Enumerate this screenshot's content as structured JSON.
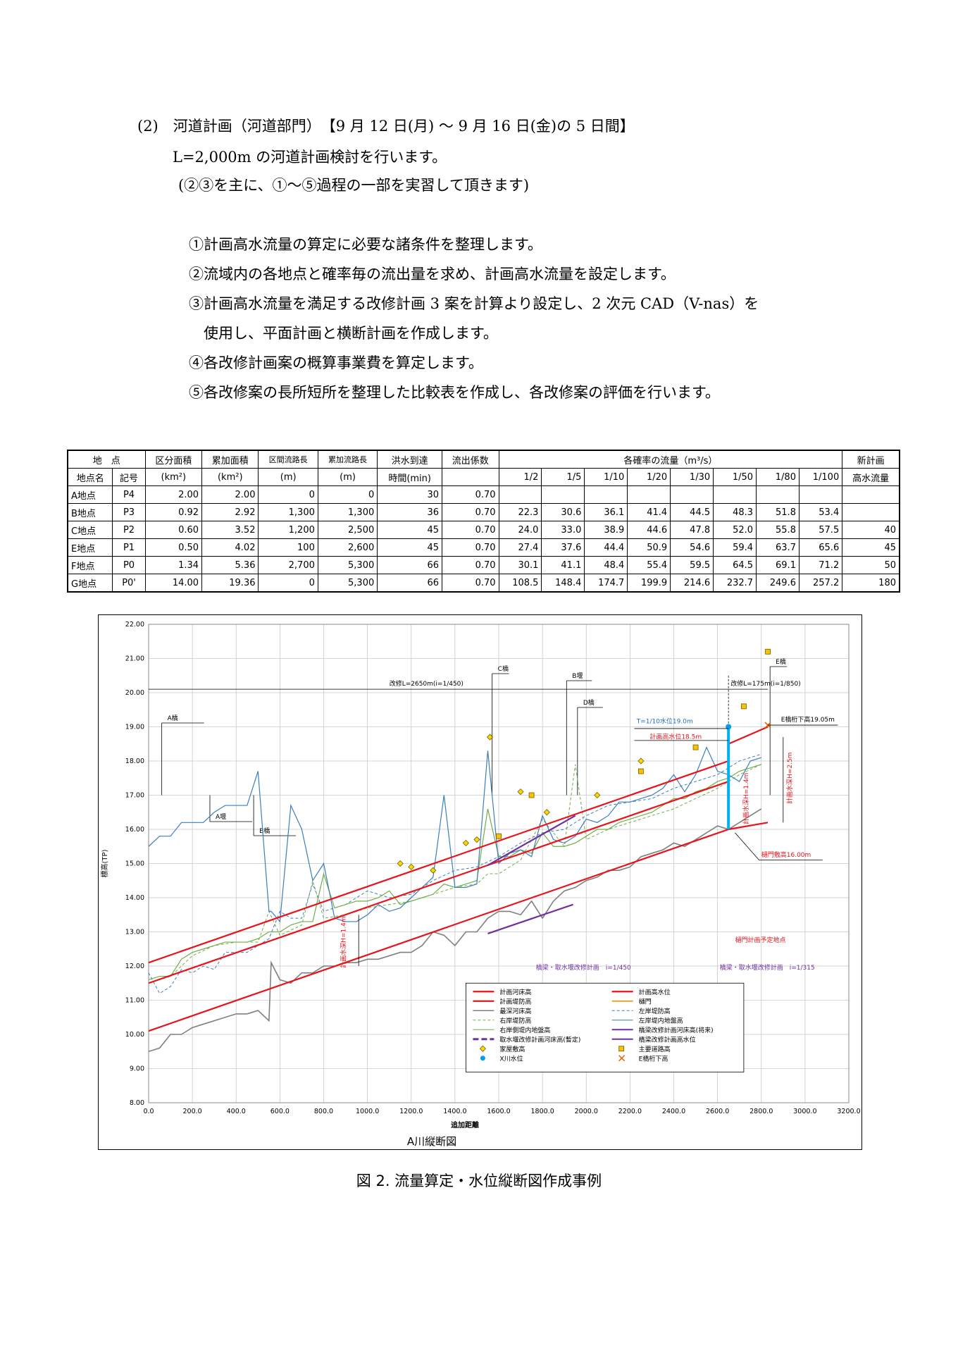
{
  "heading": "(2)　河道計画（河道部門）　【9 月 12 日(月) ～ 9 月 16 日(金)の 5 日間】",
  "intro": "L=2,000m の河道計画検討を行います。",
  "sub_intro": "(②③を主に、①～⑤過程の一部を実習して頂きます)",
  "steps": [
    "①計画高水流量の算定に必要な諸条件を整理します。",
    "②流域内の各地点と確率毎の流出量を求め、計画高水流量を設定します。",
    "③計画高水流量を満足する改修計画 3 案を計算より設定し、2 次元 CAD（V-nas）を",
    "　使用し、平面計画と横断計画を作成します。",
    "④各改修計画案の概算事業費を算定します。",
    "⑤各改修案の長所短所を整理した比較表を作成し、各改修案の評価を行います。"
  ],
  "table": {
    "h_point": "地　点",
    "h_area": "区分面積",
    "h_cum_area": "累加面積",
    "h_len": "区間流路長",
    "h_cum_len": "累加流路長",
    "h_time": "洪水到達",
    "h_coef": "流出係数",
    "h_prob": "各確率の流量（m³/s）",
    "h_new": "新計画",
    "h_name": "地点名",
    "h_sym": "記号",
    "h_km2a": "(km²)",
    "h_km2b": "(km²)",
    "h_ma": "(m)",
    "h_mb": "(m)",
    "h_time2": "時間(min)",
    "h_new2": "高水流量",
    "probs": [
      "1/2",
      "1/5",
      "1/10",
      "1/20",
      "1/30",
      "1/50",
      "1/80",
      "1/100"
    ],
    "rows": [
      {
        "name": "A地点",
        "sym": "P4",
        "area": "2.00",
        "cum_area": "2.00",
        "len": "0",
        "cum_len": "0",
        "time": "30",
        "coef": "0.70",
        "q": [
          "",
          "",
          "",
          "",
          "",
          "",
          "",
          ""
        ],
        "new": ""
      },
      {
        "name": "B地点",
        "sym": "P3",
        "area": "0.92",
        "cum_area": "2.92",
        "len": "1,300",
        "cum_len": "1,300",
        "time": "36",
        "coef": "0.70",
        "q": [
          "22.3",
          "30.6",
          "36.1",
          "41.4",
          "44.5",
          "48.3",
          "51.8",
          "53.4"
        ],
        "new": ""
      },
      {
        "name": "C地点",
        "sym": "P2",
        "area": "0.60",
        "cum_area": "3.52",
        "len": "1,200",
        "cum_len": "2,500",
        "time": "45",
        "coef": "0.70",
        "q": [
          "24.0",
          "33.0",
          "38.9",
          "44.6",
          "47.8",
          "52.0",
          "55.8",
          "57.5"
        ],
        "new": "40"
      },
      {
        "name": "E地点",
        "sym": "P1",
        "area": "0.50",
        "cum_area": "4.02",
        "len": "100",
        "cum_len": "2,600",
        "time": "45",
        "coef": "0.70",
        "q": [
          "27.4",
          "37.6",
          "44.4",
          "50.9",
          "54.6",
          "59.4",
          "63.7",
          "65.6"
        ],
        "new": "45"
      },
      {
        "name": "F地点",
        "sym": "P0",
        "area": "1.34",
        "cum_area": "5.36",
        "len": "2,700",
        "cum_len": "5,300",
        "time": "66",
        "coef": "0.70",
        "q": [
          "30.1",
          "41.1",
          "48.4",
          "55.4",
          "59.5",
          "64.5",
          "69.1",
          "71.2"
        ],
        "new": "50"
      },
      {
        "name": "G地点",
        "sym": "P0'",
        "area": "14.00",
        "cum_area": "19.36",
        "len": "0",
        "cum_len": "5,300",
        "time": "66",
        "coef": "0.70",
        "q": [
          "108.5",
          "148.4",
          "174.7",
          "199.9",
          "214.6",
          "232.7",
          "249.6",
          "257.2"
        ],
        "new": "180"
      }
    ]
  },
  "chart_data": {
    "type": "line",
    "title": "A川縦断図",
    "xlabel": "追加距離",
    "ylabel": "標高(TP)",
    "xlim": [
      0,
      3200
    ],
    "ylim": [
      8,
      22
    ],
    "xticks": [
      "0.0",
      "200.0",
      "400.0",
      "600.0",
      "800.0",
      "1000.0",
      "1200.0",
      "1400.0",
      "1600.0",
      "1800.0",
      "2000.0",
      "2200.0",
      "2400.0",
      "2600.0",
      "2800.0",
      "3000.0",
      "3200.0"
    ],
    "yticks": [
      "8.00",
      "9.00",
      "10.00",
      "11.00",
      "12.00",
      "13.00",
      "14.00",
      "15.00",
      "16.00",
      "17.00",
      "18.00",
      "19.00",
      "20.00",
      "21.00",
      "22.00"
    ],
    "grid": true,
    "legend_position": "bottom-right",
    "colors": {
      "red": "#e8141b",
      "gray": "#7f7f7f",
      "orange": "#f0a030",
      "green": "#70ad47",
      "blue": "#3a7ebf",
      "purple": "#7030a0",
      "cyan": "#00b0f0",
      "yellow": "#ffd700"
    },
    "series": [
      {
        "name": "計画河床高",
        "x": [
          0,
          2650
        ],
        "y": [
          10.1,
          16.0
        ]
      },
      {
        "name": "計画堤防高",
        "x": [
          0,
          2650
        ],
        "y": [
          12.1,
          18.0
        ]
      },
      {
        "name": "計画高水位",
        "x": [
          0,
          2650
        ],
        "y": [
          11.5,
          17.4
        ]
      },
      {
        "name": "計画高水位延長",
        "x": [
          2650,
          2830
        ],
        "y": [
          18.5,
          19.0
        ]
      },
      {
        "name": "計画河床高延長",
        "x": [
          2650,
          2830
        ],
        "y": [
          16.0,
          16.2
        ]
      },
      {
        "name": "最深河床高",
        "x": [
          0,
          50,
          100,
          150,
          200,
          250,
          300,
          350,
          400,
          450,
          500,
          550,
          560,
          600,
          650,
          700,
          750,
          800,
          850,
          900,
          950,
          1000,
          1050,
          1100,
          1150,
          1200,
          1250,
          1300,
          1350,
          1400,
          1450,
          1500,
          1550,
          1600,
          1650,
          1700,
          1750,
          1800,
          1850,
          1900,
          1950,
          2000,
          2050,
          2100,
          2150,
          2200,
          2250,
          2300,
          2350,
          2400,
          2450,
          2500,
          2550,
          2600,
          2650,
          2700,
          2750,
          2800
        ],
        "y": [
          9.5,
          9.6,
          10.0,
          10.0,
          10.2,
          10.3,
          10.4,
          10.5,
          10.6,
          10.6,
          10.7,
          10.4,
          12.1,
          11.6,
          11.5,
          11.8,
          11.8,
          12.0,
          12.0,
          12.1,
          12.1,
          12.2,
          12.2,
          12.3,
          12.4,
          12.4,
          12.6,
          13.0,
          12.9,
          12.6,
          13.0,
          13.0,
          13.4,
          13.6,
          13.6,
          13.5,
          13.9,
          13.4,
          13.9,
          14.2,
          14.3,
          14.5,
          14.6,
          14.8,
          14.8,
          14.9,
          15.2,
          15.3,
          15.4,
          15.6,
          15.5,
          15.7,
          15.9,
          16.1,
          16.0,
          16.2,
          16.4,
          16.6
        ]
      },
      {
        "name": "左岸堤防高",
        "x": [
          0,
          50,
          100,
          150,
          200,
          250,
          300,
          350,
          400,
          450,
          500,
          550,
          560,
          600,
          650,
          700,
          750,
          800,
          850,
          900,
          950,
          1000,
          1050,
          1100,
          1150,
          1200,
          1250,
          1300,
          1350,
          1400,
          1450,
          1500,
          1550,
          1600,
          1650,
          1700,
          1750,
          1800,
          1850,
          1900,
          1950,
          2000,
          2050,
          2100,
          2150,
          2200,
          2250,
          2300,
          2350,
          2400,
          2450,
          2500,
          2550,
          2600,
          2650,
          2700,
          2750,
          2800
        ],
        "y": [
          15.5,
          15.8,
          15.8,
          16.2,
          16.2,
          16.2,
          16.5,
          16.7,
          16.7,
          16.7,
          17.7,
          13.6,
          13.6,
          13.3,
          16.7,
          16.0,
          14.5,
          15.0,
          13.4,
          13.3,
          13.3,
          13.5,
          13.8,
          13.6,
          13.7,
          14.0,
          14.3,
          14.6,
          17.0,
          14.3,
          14.3,
          14.4,
          18.3,
          15.0,
          15.3,
          15.4,
          15.2,
          16.4,
          15.7,
          15.6,
          15.8,
          16.3,
          16.2,
          16.4,
          16.8,
          16.8,
          16.9,
          17.0,
          17.2,
          17.6,
          17.1,
          17.6,
          18.4,
          17.7,
          17.6,
          17.4,
          18.0,
          18.1
        ]
      },
      {
        "name": "右岸堤防高",
        "x": [
          0,
          50,
          100,
          150,
          200,
          250,
          300,
          350,
          400,
          450,
          500,
          550,
          600,
          650,
          700,
          750,
          800,
          850,
          900,
          950,
          1000,
          1050,
          1100,
          1150,
          1200,
          1250,
          1300,
          1350,
          1400,
          1450,
          1500,
          1550,
          1600,
          1650,
          1700,
          1750,
          1800,
          1850,
          1900,
          1950,
          2000,
          2050,
          2100,
          2150,
          2200,
          2250,
          2300,
          2350,
          2400,
          2450,
          2500,
          2550,
          2600,
          2650,
          2700,
          2750,
          2800
        ],
        "y": [
          11.6,
          11.7,
          11.7,
          12.2,
          12.4,
          12.5,
          12.6,
          12.7,
          12.7,
          12.7,
          12.8,
          13.0,
          13.0,
          13.2,
          13.3,
          13.3,
          14.7,
          13.7,
          13.8,
          13.9,
          13.9,
          14.0,
          14.2,
          13.8,
          13.9,
          14.0,
          14.1,
          14.4,
          14.3,
          14.4,
          14.5,
          16.6,
          15.2,
          15.2,
          15.4,
          15.3,
          15.9,
          15.5,
          15.5,
          15.6,
          15.8,
          16.0,
          16.0,
          16.2,
          16.3,
          16.4,
          16.5,
          16.7,
          16.9,
          16.9,
          17.1,
          17.2,
          17.4,
          17.5,
          17.7,
          17.8,
          17.9
        ]
      },
      {
        "name": "右岸側堤内地盤高",
        "x": [
          0,
          100,
          200,
          300,
          400,
          500,
          550,
          600,
          700,
          750,
          800,
          900,
          1000,
          1100,
          1200,
          1300,
          1400,
          1500,
          1550,
          1600,
          1700,
          1800,
          1900,
          1950,
          2000,
          2100,
          2200,
          2300,
          2400,
          2500,
          2600,
          2700,
          2800
        ],
        "y": [
          11.5,
          11.7,
          12.3,
          12.6,
          12.7,
          12.7,
          13.6,
          12.9,
          13.2,
          14.5,
          13.4,
          13.5,
          13.7,
          13.8,
          13.9,
          14.1,
          14.3,
          14.4,
          14.7,
          14.7,
          15.1,
          16.3,
          15.5,
          17.9,
          15.7,
          16.0,
          16.2,
          16.4,
          16.6,
          16.9,
          17.2,
          17.6,
          17.9
        ]
      },
      {
        "name": "左岸堤内地盤高",
        "x": [
          0,
          50,
          100,
          150,
          200,
          250,
          300,
          350,
          400,
          450,
          500,
          550,
          600,
          650,
          700,
          750,
          800,
          900,
          1000,
          1100,
          1200,
          1300,
          1400,
          1500,
          1600,
          1700,
          1800,
          1900,
          2000,
          2100,
          2200,
          2300,
          2400,
          2500,
          2600,
          2700,
          2800
        ],
        "y": [
          11.8,
          11.2,
          11.4,
          11.9,
          11.8,
          12.0,
          11.9,
          12.4,
          12.4,
          12.4,
          12.6,
          12.8,
          13.6,
          13.4,
          13.4,
          14.4,
          13.6,
          13.8,
          14.2,
          14.0,
          14.1,
          14.5,
          14.8,
          14.9,
          15.2,
          15.6,
          15.9,
          16.0,
          16.4,
          16.7,
          16.8,
          16.9,
          17.2,
          17.4,
          17.6,
          18.0,
          18.2
        ]
      },
      {
        "name": "取水堰改修計画河床高(暫定)",
        "x": [
          1550,
          1950
        ],
        "y": [
          14.95,
          16.4
        ]
      },
      {
        "name": "橋梁改修計画河床高(将来)",
        "x": [
          1550,
          1940
        ],
        "y": [
          12.95,
          13.8
        ]
      },
      {
        "name": "樋門",
        "x": [
          2650,
          2650
        ],
        "y": [
          16.0,
          19.0
        ]
      }
    ],
    "points": {
      "家屋敷高": {
        "x": [
          1150,
          1200,
          1300,
          1450,
          1500,
          1560,
          1700,
          1820,
          2050,
          2250
        ],
        "y": [
          15.0,
          14.9,
          14.8,
          15.6,
          15.7,
          18.7,
          17.1,
          16.5,
          17.0,
          18.0
        ]
      },
      "主要道路高": {
        "x": [
          1600,
          1750,
          2250,
          2500,
          2720,
          2830
        ],
        "y": [
          15.8,
          17.0,
          17.7,
          18.4,
          19.6,
          21.2
        ]
      },
      "X川水位": {
        "x": [
          2650
        ],
        "y": [
          19.0
        ]
      },
      "E橋桁下高": {
        "x": [
          2830
        ],
        "y": [
          19.05
        ]
      }
    },
    "legend": [
      "計画河床高",
      "計画高水位",
      "計画堤防高",
      "樋門",
      "最深河床高",
      "左岸堤防高",
      "右岸堤防高",
      "左岸堤内地盤高",
      "右岸側堤内地盤高",
      "橋梁改修計画河床高(将来)",
      "取水堰改修計画河床高(暫定)",
      "橋梁改修計画高水位",
      "家屋敷高",
      "主要道路高",
      "X川水位",
      "E橋桁下高"
    ],
    "annotations": {
      "bridge_a": "A橋",
      "weir_a": "A堰",
      "bridge_b": "B橋",
      "bridge_c": "C橋",
      "bridge_b2": "B堰",
      "bridge_d": "D橋",
      "bridge_e": "E橋",
      "kaishu1": "改修L=2650m(i=1/450)",
      "kaishu2": "改修L=175m(i=1/850)",
      "t10": "T=1/10水位19.0m",
      "hwl": "計画高水位18.5m",
      "e_girder": "E橋桁下高19.05m",
      "depth1": "計画水深H=2.5m",
      "depth2": "計画水深H=1.4m",
      "depth3": "計画水深H=1.4m",
      "sill": "樋門敷高16.00m",
      "gate_plan": "樋門計画予定地点",
      "plan1": "橋梁・取水堰改修計画　i=1/450",
      "plan2": "橋梁・取水堰改修計画　i=1/315"
    }
  },
  "caption": "図 2. 流量算定・水位縦断図作成事例"
}
